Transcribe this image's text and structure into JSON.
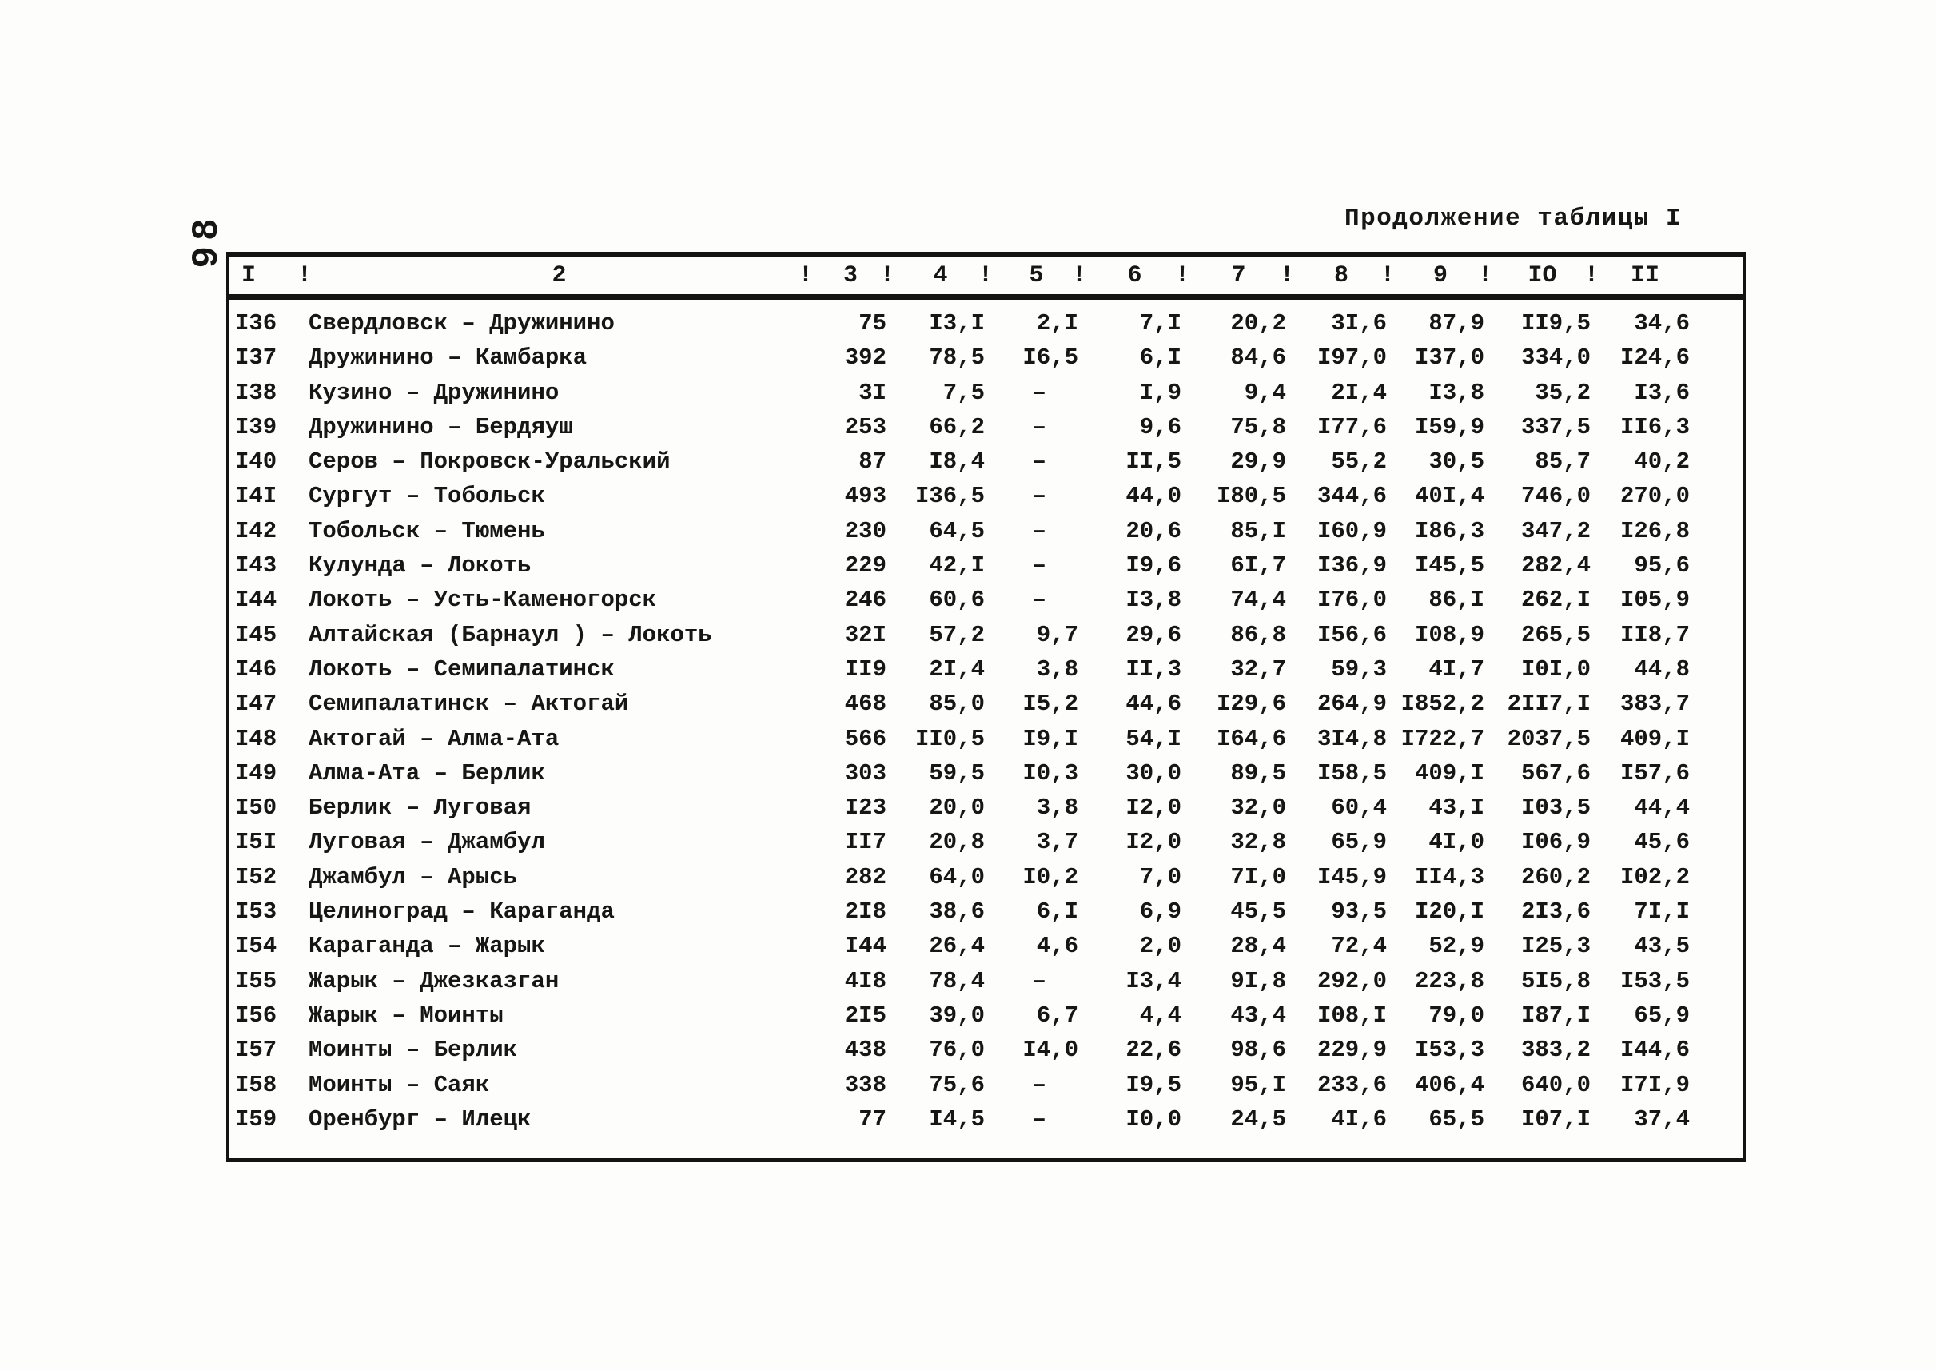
{
  "page": {
    "number": "98",
    "caption": "Продолжение таблицы I"
  },
  "table": {
    "separator": "!",
    "columns": [
      "I",
      "2",
      "3",
      "4",
      "5",
      "6",
      "7",
      "8",
      "9",
      "IO",
      "II"
    ],
    "rows": [
      [
        "I36",
        "Свердловск – Дружинино",
        "75",
        "I3,I",
        "2,I",
        "7,I",
        "20,2",
        "3I,6",
        "87,9",
        "II9,5",
        "34,6"
      ],
      [
        "I37",
        "Дружинино – Камбарка",
        "392",
        "78,5",
        "I6,5",
        "6,I",
        "84,6",
        "I97,0",
        "I37,0",
        "334,0",
        "I24,6"
      ],
      [
        "I38",
        "Кузино – Дружинино",
        "3I",
        "7,5",
        "–",
        "I,9",
        "9,4",
        "2I,4",
        "I3,8",
        "35,2",
        "I3,6"
      ],
      [
        "I39",
        "Дружинино – Бердяуш",
        "253",
        "66,2",
        "–",
        "9,6",
        "75,8",
        "I77,6",
        "I59,9",
        "337,5",
        "II6,3"
      ],
      [
        "I40",
        "Серов – Покровск-Уральский",
        "87",
        "I8,4",
        "–",
        "II,5",
        "29,9",
        "55,2",
        "30,5",
        "85,7",
        "40,2"
      ],
      [
        "I4I",
        "Сургут – Тобольск",
        "493",
        "I36,5",
        "–",
        "44,0",
        "I80,5",
        "344,6",
        "40I,4",
        "746,0",
        "270,0"
      ],
      [
        "I42",
        "Тобольск – Тюмень",
        "230",
        "64,5",
        "–",
        "20,6",
        "85,I",
        "I60,9",
        "I86,3",
        "347,2",
        "I26,8"
      ],
      [
        "I43",
        "Кулунда – Локоть",
        "229",
        "42,I",
        "–",
        "I9,6",
        "6I,7",
        "I36,9",
        "I45,5",
        "282,4",
        "95,6"
      ],
      [
        "I44",
        "Локоть – Усть-Каменогорск",
        "246",
        "60,6",
        "–",
        "I3,8",
        "74,4",
        "I76,0",
        "86,I",
        "262,I",
        "I05,9"
      ],
      [
        "I45",
        "Алтайская (Барнаул ) – Локоть",
        "32I",
        "57,2",
        "9,7",
        "29,6",
        "86,8",
        "I56,6",
        "I08,9",
        "265,5",
        "II8,7"
      ],
      [
        "I46",
        "Локоть – Семипалатинск",
        "II9",
        "2I,4",
        "3,8",
        "II,3",
        "32,7",
        "59,3",
        "4I,7",
        "I0I,0",
        "44,8"
      ],
      [
        "I47",
        "Семипалатинск – Актогай",
        "468",
        "85,0",
        "I5,2",
        "44,6",
        "I29,6",
        "264,9",
        "I852,2",
        "2II7,I",
        "383,7"
      ],
      [
        "I48",
        "Актогай – Алма-Ата",
        "566",
        "II0,5",
        "I9,I",
        "54,I",
        "I64,6",
        "3I4,8",
        "I722,7",
        "2037,5",
        "409,I"
      ],
      [
        "I49",
        "Алма-Ата – Берлик",
        "303",
        "59,5",
        "I0,3",
        "30,0",
        "89,5",
        "I58,5",
        "409,I",
        "567,6",
        "I57,6"
      ],
      [
        "I50",
        "Берлик – Луговая",
        "I23",
        "20,0",
        "3,8",
        "I2,0",
        "32,0",
        "60,4",
        "43,I",
        "I03,5",
        "44,4"
      ],
      [
        "I5I",
        "Луговая – Джамбул",
        "II7",
        "20,8",
        "3,7",
        "I2,0",
        "32,8",
        "65,9",
        "4I,0",
        "I06,9",
        "45,6"
      ],
      [
        "I52",
        "Джамбул – Арысь",
        "282",
        "64,0",
        "I0,2",
        "7,0",
        "7I,0",
        "I45,9",
        "II4,3",
        "260,2",
        "I02,2"
      ],
      [
        "I53",
        "Целиноград – Караганда",
        "2I8",
        "38,6",
        "6,I",
        "6,9",
        "45,5",
        "93,5",
        "I20,I",
        "2I3,6",
        "7I,I"
      ],
      [
        "I54",
        "Караганда – Жарык",
        "I44",
        "26,4",
        "4,6",
        "2,0",
        "28,4",
        "72,4",
        "52,9",
        "I25,3",
        "43,5"
      ],
      [
        "I55",
        "Жарык – Джезказган",
        "4I8",
        "78,4",
        "–",
        "I3,4",
        "9I,8",
        "292,0",
        "223,8",
        "5I5,8",
        "I53,5"
      ],
      [
        "I56",
        "Жарык – Моинты",
        "2I5",
        "39,0",
        "6,7",
        "4,4",
        "43,4",
        "I08,I",
        "79,0",
        "I87,I",
        "65,9"
      ],
      [
        "I57",
        "Моинты – Берлик",
        "438",
        "76,0",
        "I4,0",
        "22,6",
        "98,6",
        "229,9",
        "I53,3",
        "383,2",
        "I44,6"
      ],
      [
        "I58",
        "Моинты – Саяк",
        "338",
        "75,6",
        "–",
        "I9,5",
        "95,I",
        "233,6",
        "406,4",
        "640,0",
        "I7I,9"
      ],
      [
        "I59",
        "Оренбург – Илецк",
        "77",
        "I4,5",
        "–",
        "I0,0",
        "24,5",
        "4I,6",
        "65,5",
        "I07,I",
        "37,4"
      ]
    ]
  }
}
